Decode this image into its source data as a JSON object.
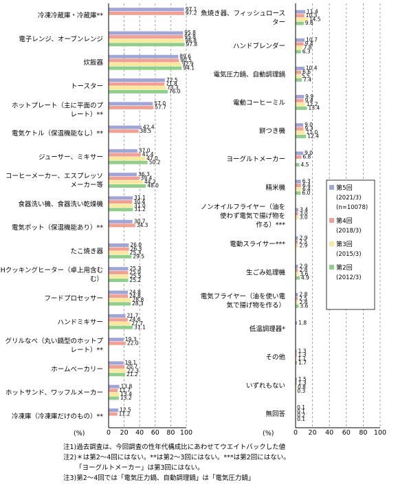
{
  "colors": {
    "r5": "#9FA5D8",
    "r4": "#F2A092",
    "r3": "#FCE89A",
    "r2": "#8FCF8B",
    "axis": "#000000",
    "grid": "#888888"
  },
  "legend": {
    "position": "right, inside right panel",
    "items": [
      {
        "key": "r5",
        "label": "第5回",
        "sub": [
          "(2021/3)",
          "(n=10078)"
        ]
      },
      {
        "key": "r4",
        "label": "第4回",
        "sub": [
          "(2018/3)"
        ]
      },
      {
        "key": "r3",
        "label": "第3回",
        "sub": [
          "(2015/3)"
        ]
      },
      {
        "key": "r2",
        "label": "第2回",
        "sub": [
          "(2012/3)"
        ]
      }
    ]
  },
  "unit_label": "(%)",
  "notes": [
    "注1)過去調査は、今回調査の性年代構成比にあわせてウエイトバックした値",
    "注2)＊は第2～4回にはない。**は第2～3回にはない。***は第2回にはない。",
    "「ヨーグルトメーカー」は第3回にはない。",
    "注3)第2～4回では「電気圧力鍋、自動調理鍋」は「電気圧力鍋」"
  ],
  "chart_data": [
    {
      "type": "bar",
      "orientation": "horizontal",
      "xlim": [
        0,
        100
      ],
      "xticks": [
        0,
        20,
        40,
        60,
        80,
        100
      ],
      "grid": true,
      "series_order": [
        "r5",
        "r4",
        "r3",
        "r2"
      ],
      "categories": [
        {
          "label": [
            "冷凍冷蔵庫・冷蔵庫**"
          ],
          "values": {
            "r5": 97.1,
            "r4": 97.2
          }
        },
        {
          "label": [
            "電子レンジ、オーブンレンジ"
          ],
          "values": {
            "r5": 95.8,
            "r4": 95.8,
            "r3": 96.8,
            "r2": 97.8
          }
        },
        {
          "label": [
            "炊飯器"
          ],
          "values": {
            "r5": 89.6,
            "r4": 90.5,
            "r3": 92.9,
            "r2": 94.1
          }
        },
        {
          "label": [
            "トースター"
          ],
          "values": {
            "r5": 72.5,
            "r4": 71.8,
            "r3": 73.3,
            "r2": 76.0
          }
        },
        {
          "label": [
            "ホットプレート（主に平面のプ",
            "レート）**"
          ],
          "values": {
            "r5": 57.0,
            "r4": 57.7
          }
        },
        {
          "label": [
            "電気ケトル（保温機能なし）**"
          ],
          "values": {
            "r5": 42.4,
            "r4": 38.5
          }
        },
        {
          "label": [
            "ジューサー、ミキサー"
          ],
          "values": {
            "r5": 37.0,
            "r4": 41.4,
            "r3": 47.0,
            "r2": 50.2
          }
        },
        {
          "label": [
            "コーヒーメーカー、エスプレッソ",
            "メーカー等"
          ],
          "values": {
            "r5": 36.3,
            "r4": 39.4,
            "r3": 44.2,
            "r2": 48.0
          }
        },
        {
          "label": [
            "食器洗い機、食器洗い乾燥機"
          ],
          "values": {
            "r5": 31.1,
            "r4": 30.4,
            "r3": 31.0,
            "r2": 31.2
          }
        },
        {
          "label": [
            "電気ポット（保温機能あり）**"
          ],
          "values": {
            "r5": 30.7,
            "r4": 34.3
          }
        },
        {
          "label": [
            "たこ焼き器"
          ],
          "values": {
            "r5": 26.0,
            "r4": 26.3,
            "r3": 25.3,
            "r2": 29.5
          }
        },
        {
          "label": [
            "IHクッキングヒーター（卓上用含む",
            "む）"
          ],
          "values": {
            "r5": 25.3,
            "r4": 25.0,
            "r3": 25.5,
            "r2": 25.2
          }
        },
        {
          "label": [
            "フードプロセッサー"
          ],
          "values": {
            "r5": 24.8,
            "r4": 24.8,
            "r3": 28.8,
            "r2": 28.3
          }
        },
        {
          "label": [
            "ハンドミキサー"
          ],
          "values": {
            "r5": 21.7,
            "r4": 24.6,
            "r3": 27.7,
            "r2": 31.1
          }
        },
        {
          "label": [
            "グリルなべ（丸い鍋型のホットプ",
            "レート）**"
          ],
          "values": {
            "r5": 19.3,
            "r4": 22.0
          }
        },
        {
          "label": [
            "ホームベーカリー"
          ],
          "values": {
            "r5": 19.1,
            "r4": 20.7,
            "r3": 22.3,
            "r2": 21.2
          }
        },
        {
          "label": [
            "ホットサンド、ワッフルメーカー"
          ],
          "values": {
            "r5": 13.8,
            "r4": 11.7,
            "r3": 13.4,
            "r2": 13.2
          }
        },
        {
          "label": [
            "冷凍庫（冷凍庫だけのもの）**"
          ],
          "values": {
            "r5": 12.5,
            "r4": 11.2
          }
        }
      ]
    },
    {
      "type": "bar",
      "orientation": "horizontal",
      "xlim": [
        0,
        100
      ],
      "xticks": [
        0,
        20,
        40,
        60,
        80,
        100
      ],
      "grid": true,
      "series_order": [
        "r5",
        "r4",
        "r3",
        "r2"
      ],
      "categories": [
        {
          "label": [
            "魚焼き器、フィッシュロース",
            "ター"
          ],
          "values": {
            "r5": 11.4,
            "r4": 10.3,
            "r3": 14.5,
            "r2": 9.6
          }
        },
        {
          "label": [
            "ハンドブレンダー"
          ],
          "values": {
            "r5": 10.7,
            "r4": 9.4,
            "r3": 7.8,
            "r2": 6.3
          }
        },
        {
          "label": [
            "電気圧力鍋、自動調理鍋"
          ],
          "values": {
            "r5": 10.4,
            "r4": 6.6,
            "r3": 5.5,
            "r2": 7.4
          }
        },
        {
          "label": [
            "電動コーヒーミル"
          ],
          "values": {
            "r5": 9.9,
            "r4": 9.4,
            "r3": 11.2,
            "r2": 13.4
          }
        },
        {
          "label": [
            "餅つき機"
          ],
          "values": {
            "r5": 9.0,
            "r4": 9.3,
            "r3": 11.0,
            "r2": 12.4
          }
        },
        {
          "label": [
            "ヨーグルトメーカー"
          ],
          "values": {
            "r5": 9.0,
            "r4": 6.8,
            "r2": 4.5
          }
        },
        {
          "label": [
            "精米機"
          ],
          "values": {
            "r5": 6.3,
            "r4": 6.4,
            "r3": 6.4,
            "r2": 6.0
          }
        },
        {
          "label": [
            "ノンオイルフライヤー（油を",
            "使わず電気で揚げ物を",
            "作る）***"
          ],
          "values": {
            "r5": 3.4,
            "r4": 3.0,
            "r3": 3.0
          }
        },
        {
          "label": [
            "電動スライサー***"
          ],
          "values": {
            "r5": 2.9,
            "r4": 2.5,
            "r3": 2.9
          }
        },
        {
          "label": [
            "生ごみ処理機"
          ],
          "values": {
            "r5": 2.9,
            "r4": 2.8,
            "r3": 3.6,
            "r2": 4.9
          }
        },
        {
          "label": [
            "電気フライヤー（油を使い電",
            "気で揚げ物を作る）"
          ],
          "values": {
            "r5": 2.8,
            "r4": 2.5,
            "r3": 2.8,
            "r2": 3.6
          }
        },
        {
          "label": [
            "低温調理器*"
          ],
          "values": {
            "r5": 1.8
          }
        },
        {
          "label": [
            "その他"
          ],
          "values": {
            "r5": 1.3,
            "r4": 1.3,
            "r3": 1.1,
            "r2": 1.7
          }
        },
        {
          "label": [
            "いずれもない"
          ],
          "values": {
            "r5": 1.5,
            "r4": 1.3,
            "r3": 0.8,
            "r2": 0.3
          }
        },
        {
          "label": [
            "無回答"
          ],
          "values": {
            "r5": 0.1,
            "r4": 0.1,
            "r3": 0.2,
            "r2": 0.1
          }
        }
      ]
    }
  ]
}
